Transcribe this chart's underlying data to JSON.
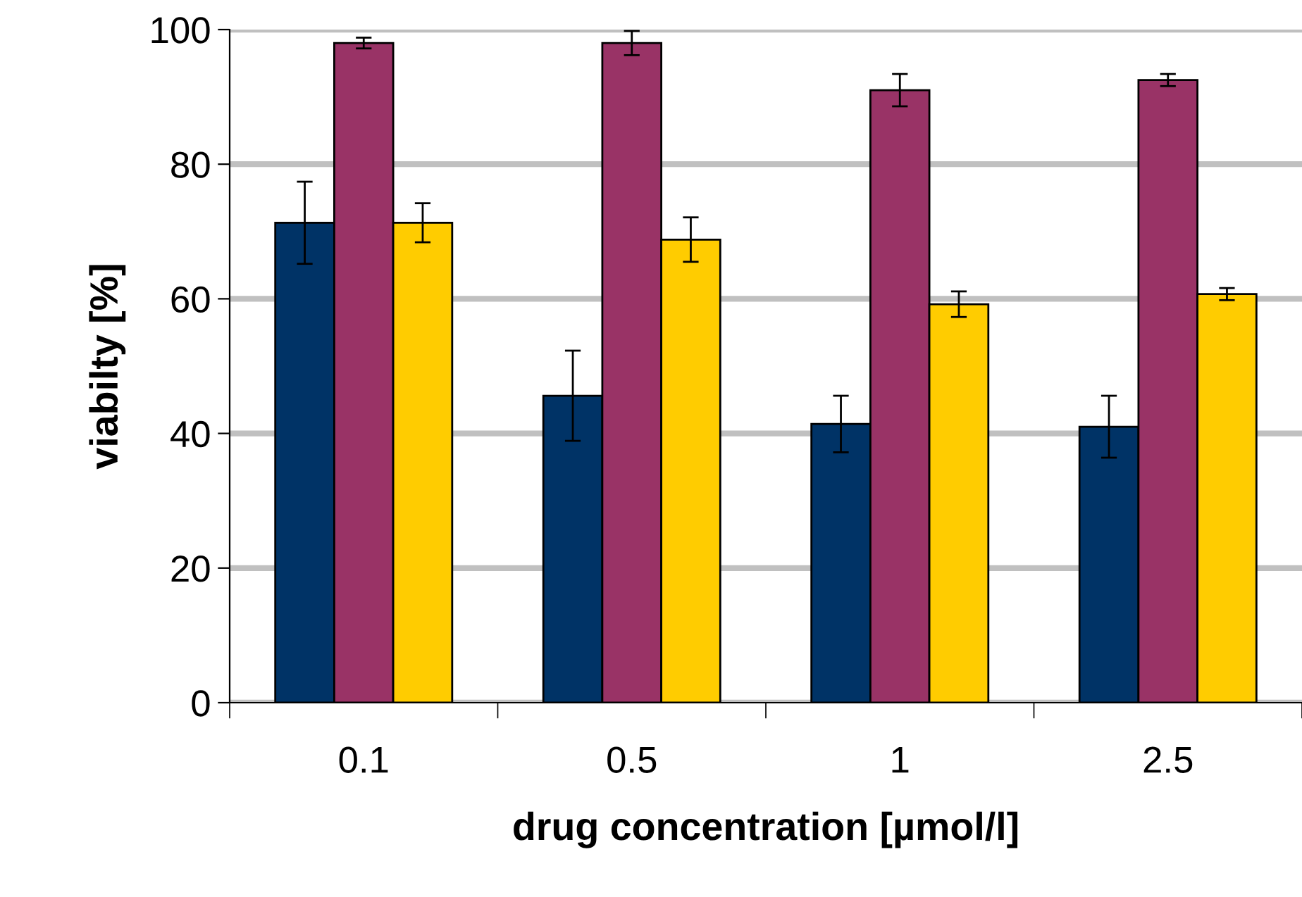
{
  "chart_data": {
    "type": "bar",
    "xlabel": "drug concentration [µmol/l]",
    "ylabel": "viabilty [%]",
    "categories": [
      "0.1",
      "0.5",
      "1",
      "2.5"
    ],
    "series": [
      {
        "color": "#003366",
        "values": [
          71.3,
          45.6,
          41.4,
          41.0
        ],
        "errors": [
          6.1,
          6.7,
          4.2,
          4.6
        ]
      },
      {
        "color": "#993366",
        "values": [
          98.0,
          98.0,
          91.0,
          92.5
        ],
        "errors": [
          0.8,
          1.8,
          2.4,
          0.9
        ]
      },
      {
        "color": "#ffcc00",
        "values": [
          71.3,
          68.8,
          59.2,
          60.7
        ],
        "errors": [
          2.9,
          3.3,
          1.9,
          0.9
        ]
      }
    ],
    "ylim": [
      0,
      100
    ],
    "yticks": [
      0,
      20,
      40,
      60,
      80,
      100
    ],
    "grid": "y",
    "legend": false
  }
}
